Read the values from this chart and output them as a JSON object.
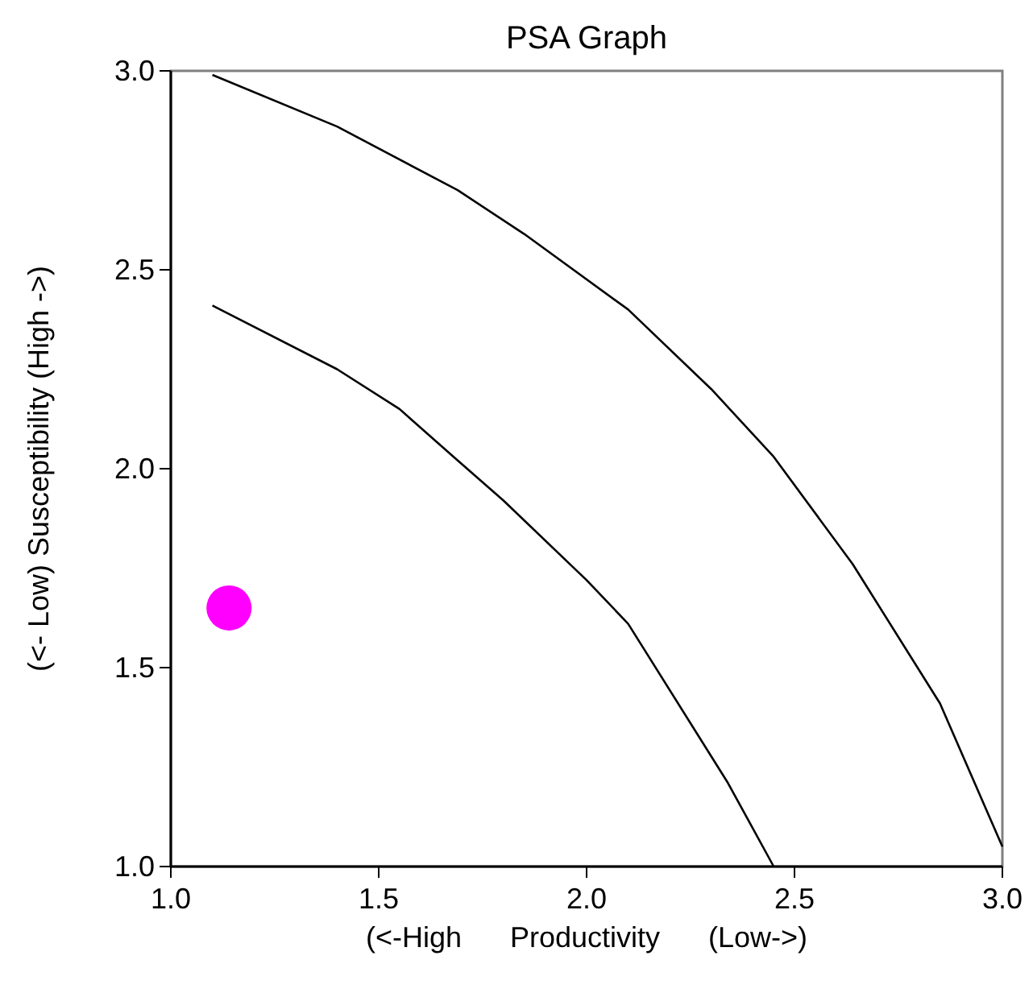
{
  "chart_data": {
    "type": "scatter",
    "title": "PSA Graph",
    "xlabel": "(<-High      Productivity      (Low->)",
    "ylabel": "(<- Low) Susceptibility (High ->)",
    "xlim": [
      1,
      3
    ],
    "ylim": [
      1,
      3
    ],
    "xticks": [
      {
        "value": 1,
        "label": "1.0"
      },
      {
        "value": 1.5,
        "label": "1.5"
      },
      {
        "value": 2,
        "label": "2.0"
      },
      {
        "value": 2.5,
        "label": "2.5"
      },
      {
        "value": 3,
        "label": "3.0"
      }
    ],
    "yticks": [
      {
        "value": 1,
        "label": "1.0"
      },
      {
        "value": 1.5,
        "label": "1.5"
      },
      {
        "value": 2,
        "label": "2.0"
      },
      {
        "value": 2.5,
        "label": "2.5"
      },
      {
        "value": 3,
        "label": "3.0"
      }
    ],
    "grid": false,
    "marker": "circle",
    "series": [
      {
        "type": "line",
        "color": "#000000",
        "marker": "none",
        "x": [
          1.1,
          1.4,
          1.69,
          1.85,
          2.1,
          2.3,
          2.45,
          2.64,
          2.85,
          3.0
        ],
        "values": [
          2.99,
          2.86,
          2.7,
          2.59,
          2.4,
          2.2,
          2.03,
          1.76,
          1.41,
          1.05
        ]
      },
      {
        "type": "line",
        "color": "#000000",
        "marker": "none",
        "x": [
          1.1,
          1.4,
          1.55,
          1.68,
          1.8,
          2.0,
          2.1,
          2.34,
          2.45
        ],
        "values": [
          2.41,
          2.25,
          2.15,
          2.03,
          1.92,
          1.72,
          1.61,
          1.21,
          1.0
        ]
      },
      {
        "color": "#ff00ff",
        "x": [
          1.14
        ],
        "values": [
          1.65
        ]
      }
    ]
  }
}
